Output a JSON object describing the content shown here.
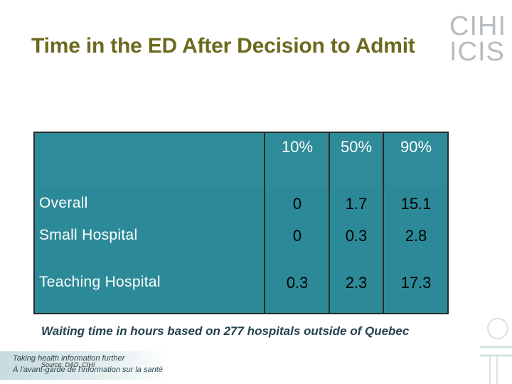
{
  "title": "Time in the ED After Decision to Admit",
  "logo": {
    "line1": "CIHI",
    "line2": "ICIS"
  },
  "table": {
    "columns": [
      "10%",
      "50%",
      "90%"
    ],
    "rows": [
      {
        "label": "Overall",
        "values": [
          "0",
          "1.7",
          "15.1"
        ]
      },
      {
        "label": "Small Hospital",
        "values": [
          "0",
          "0.3",
          "2.8"
        ]
      },
      {
        "label": "Teaching Hospital",
        "values": [
          "0.3",
          "2.3",
          "17.3"
        ]
      }
    ]
  },
  "caption": "Waiting time in hours based on 277 hospitals outside of Quebec",
  "footer": {
    "tagline_en": "Taking health information further",
    "tagline_fr": "À l'avant-garde de l'information sur la santé",
    "source": "Source: DAD, CIHI"
  },
  "colors": {
    "title": "#6b6a1e",
    "table_fill": "#2e8b99",
    "caption": "#24414f"
  }
}
